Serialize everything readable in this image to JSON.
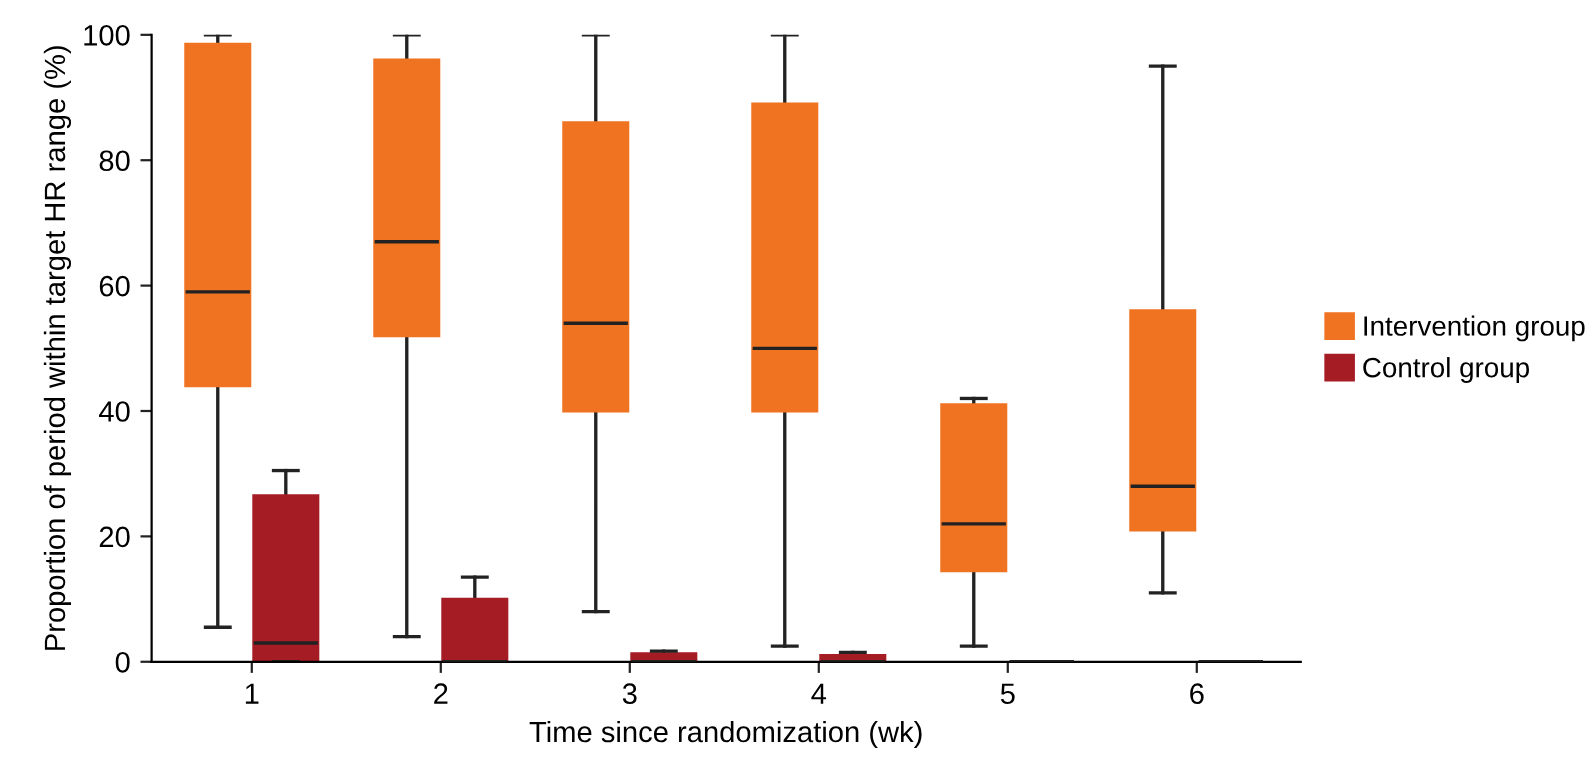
{
  "chart_data": {
    "type": "box",
    "xlabel": "Time since randomization (wk)",
    "ylabel": "Proportion of period within target HR range (%)",
    "categories": [
      "1",
      "2",
      "3",
      "4",
      "5",
      "6"
    ],
    "series": [
      {
        "name": "Intervention group",
        "color": "#f07322",
        "boxes": [
          {
            "low": 5.5,
            "q1": 44,
            "median": 59,
            "q3": 98.5,
            "high": 100
          },
          {
            "low": 4,
            "q1": 52,
            "median": 67,
            "q3": 96,
            "high": 100
          },
          {
            "low": 8,
            "q1": 40,
            "median": 54,
            "q3": 86,
            "high": 100
          },
          {
            "low": 2.5,
            "q1": 40,
            "median": 50,
            "q3": 89,
            "high": 100
          },
          {
            "low": 2.5,
            "q1": 14.5,
            "median": 22,
            "q3": 41,
            "high": 42
          },
          {
            "low": 11,
            "q1": 21,
            "median": 28,
            "q3": 56,
            "high": 95
          }
        ]
      },
      {
        "name": "Control group",
        "color": "#a51c24",
        "boxes": [
          {
            "low": 0,
            "q1": 0,
            "median": 3,
            "q3": 26.5,
            "high": 30.5
          },
          {
            "low": 0,
            "q1": 0,
            "median": 0,
            "q3": 10,
            "high": 13.5
          },
          {
            "low": 0,
            "q1": 0,
            "median": 0,
            "q3": 1.3,
            "high": 1.7
          },
          {
            "low": 0,
            "q1": 0,
            "median": 0,
            "q3": 1,
            "high": 1.5
          },
          {
            "low": 0,
            "q1": 0,
            "median": 0,
            "q3": 0,
            "high": 0
          },
          {
            "low": 0,
            "q1": 0,
            "median": 0,
            "q3": 0,
            "high": 0
          }
        ]
      }
    ],
    "ylim": [
      0,
      100
    ],
    "yticks": [
      0,
      20,
      40,
      60,
      80,
      100
    ],
    "grid": false,
    "legend": "right"
  }
}
